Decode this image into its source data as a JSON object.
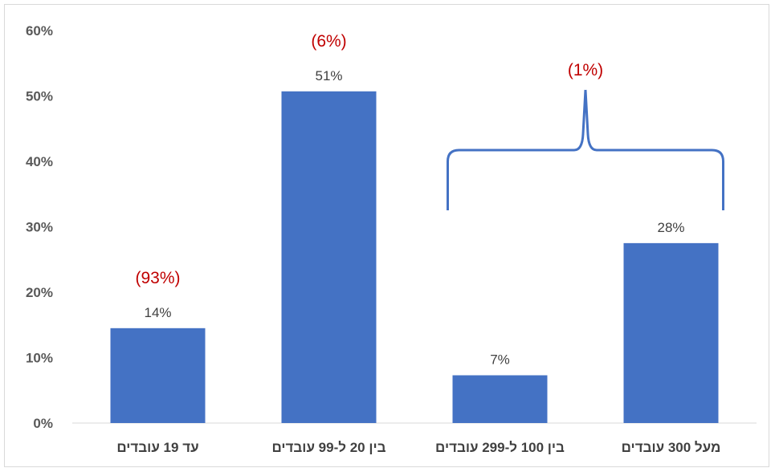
{
  "chart_data": {
    "type": "bar",
    "categories": [
      "עד 19 עובדים",
      "בין 20 ל-99 עובדים",
      "בין 100 ל-299 עובדים",
      "מעל 300 עובדים"
    ],
    "values": [
      14.5,
      50.7,
      7.3,
      27.5
    ],
    "data_labels": [
      "14%",
      "51%",
      "7%",
      "28%"
    ],
    "annotations": [
      {
        "text": "(93%)",
        "category_index": 0
      },
      {
        "text": "(6%)",
        "category_index": 1
      },
      {
        "text": "(1%)",
        "category_index": [
          2,
          3
        ],
        "bracket": true
      }
    ],
    "y_ticks": [
      "0%",
      "10%",
      "20%",
      "30%",
      "40%",
      "50%",
      "60%"
    ],
    "ylim": [
      0,
      60
    ],
    "grid": false,
    "bar_color": "#4472c4",
    "annotation_color": "#c00000",
    "title": "",
    "xlabel": "",
    "ylabel": ""
  }
}
